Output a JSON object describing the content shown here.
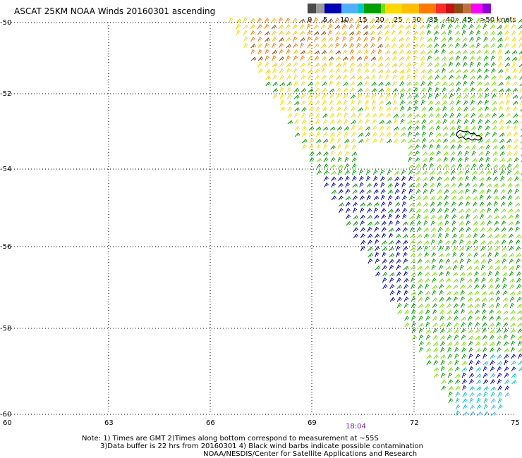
{
  "title": "ASCAT 25KM NOAA Winds 20160301 ascending",
  "legend": {
    "colors": [
      "#4a4a4a",
      "#9a9a9a",
      "#0000b4",
      "#4fb0ff",
      "#00c8c8",
      "#00a000",
      "#79e000",
      "#ffd800",
      "#ffbf00",
      "#ff7a00",
      "#ff2a2a",
      "#c81010",
      "#8a4a10",
      "#c07040",
      "#ff00ff",
      "#9000d8"
    ],
    "labels": [
      "0",
      "5",
      "10",
      "15",
      "20",
      "25",
      "30",
      "35",
      "40",
      "45",
      ">50 knots"
    ]
  },
  "axes": {
    "lat_labels": [
      "-50",
      "-52",
      "-54",
      "-56",
      "-58",
      "-60"
    ],
    "lon_labels": [
      "60",
      "63",
      "66",
      "69",
      "72",
      "75"
    ]
  },
  "time_label": "18:04",
  "notes": {
    "line1": "Note: 1) Times are GMT 2)Times along bottom correspond to measurement at ~55S",
    "line2": "3)Data buffer is 22 hrs from 20160301 4) Black wind barbs indicate possible contamination",
    "line3": "NOAA/NESDIS/Center for Satellite Applications and Research"
  }
}
